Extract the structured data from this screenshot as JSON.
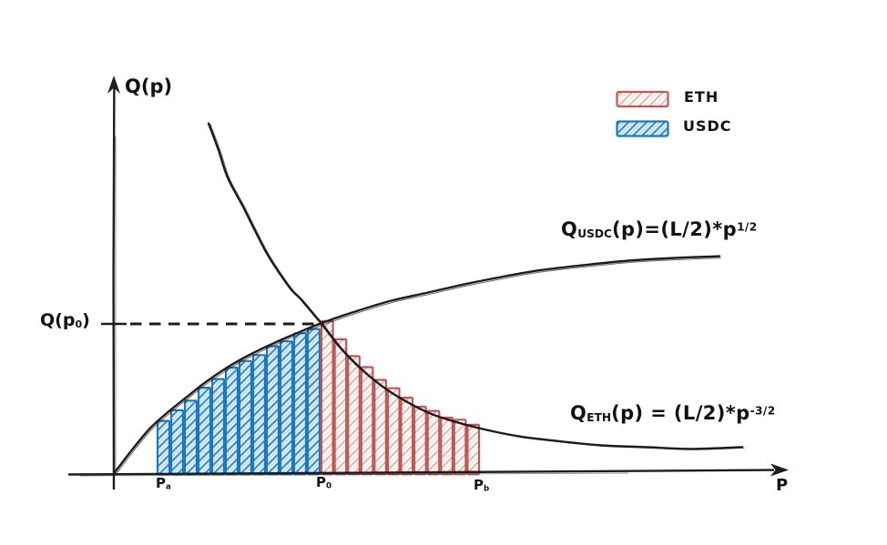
{
  "axes": {
    "y_label": "Q(p)",
    "x_label": "P"
  },
  "y_reference_label": {
    "pre": "Q(p",
    "sub": "0",
    "post": ")"
  },
  "legend": {
    "items": [
      {
        "label": "ETH",
        "swatch": "red-diagonal-hatch",
        "color": "#bf5955"
      },
      {
        "label": "USDC",
        "swatch": "blue-diagonal-hatch",
        "color": "#1f78bd"
      }
    ]
  },
  "formulas": {
    "usdc": {
      "pre": "Q",
      "sub": "USDC",
      "mid": "(p)=(L/2)*p",
      "sup": "1/2"
    },
    "eth": {
      "pre": "Q",
      "sub": "ETH",
      "mid": "(p) = (L/2)*p",
      "sup": "-3/2"
    }
  },
  "colors": {
    "ink": "#1c1c1c",
    "usdc_border": "#1f78bd",
    "usdc_hatch": "#3f93cf",
    "usdc_hatch_light": "#a9cfeb",
    "eth_border": "#bf5955",
    "eth_hatch": "#e7b3af",
    "eth_hatch_light": "#f4d9d7"
  },
  "chart_data": {
    "type": "line",
    "xlabel": "P",
    "ylabel": "Q(p)",
    "units_note": "p expressed in multiples of P0; Q expressed in multiples of Q(p0); no numeric axis scale shown",
    "axis_ranges": {
      "p": [
        0,
        3.3
      ],
      "q": [
        0,
        2.6
      ]
    },
    "grid": false,
    "legend_position": "top-right",
    "x_ticks": [
      {
        "base": "P",
        "sub": "a",
        "p": 0.207
      },
      {
        "base": "P",
        "sub": "0",
        "p": 1.0
      },
      {
        "base": "P",
        "sub": "b",
        "p": 1.771
      }
    ],
    "y_ticks": [
      {
        "label": "Q(p0)",
        "q": 1.0
      }
    ],
    "series": [
      {
        "key": "usdc",
        "name": "Q_USDC(p)=(L/2)*p^1/2",
        "points": [
          [
            0,
            0
          ],
          [
            0.088,
            0.158
          ],
          [
            0.176,
            0.303
          ],
          [
            0.264,
            0.412
          ],
          [
            0.352,
            0.509
          ],
          [
            0.441,
            0.606
          ],
          [
            0.551,
            0.709
          ],
          [
            0.661,
            0.794
          ],
          [
            0.771,
            0.867
          ],
          [
            0.881,
            0.933
          ],
          [
            1.0,
            1.0
          ],
          [
            1.167,
            1.079
          ],
          [
            1.344,
            1.152
          ],
          [
            1.52,
            1.206
          ],
          [
            1.696,
            1.261
          ],
          [
            1.872,
            1.309
          ],
          [
            2.048,
            1.352
          ],
          [
            2.269,
            1.388
          ],
          [
            2.489,
            1.418
          ],
          [
            2.709,
            1.436
          ],
          [
            2.93,
            1.448
          ]
        ]
      },
      {
        "key": "eth",
        "name": "Q_ETH(p) = (L/2)*p^-3/2",
        "points": [
          [
            0.458,
            2.333
          ],
          [
            0.507,
            2.152
          ],
          [
            0.551,
            1.97
          ],
          [
            0.626,
            1.776
          ],
          [
            0.683,
            1.618
          ],
          [
            0.74,
            1.467
          ],
          [
            0.802,
            1.333
          ],
          [
            0.859,
            1.224
          ],
          [
            0.903,
            1.164
          ],
          [
            0.978,
            1.042
          ],
          [
            1.004,
            1.0
          ],
          [
            1.101,
            0.83
          ],
          [
            1.211,
            0.679
          ],
          [
            1.322,
            0.558
          ],
          [
            1.432,
            0.467
          ],
          [
            1.542,
            0.394
          ],
          [
            1.652,
            0.345
          ],
          [
            1.784,
            0.297
          ],
          [
            1.96,
            0.248
          ],
          [
            2.137,
            0.218
          ],
          [
            2.357,
            0.188
          ],
          [
            2.577,
            0.176
          ],
          [
            2.797,
            0.164
          ],
          [
            3.04,
            0.176
          ]
        ]
      }
    ],
    "riemann_bars": [
      {
        "key": "usdc",
        "label": "USDC",
        "p_start": 0.207,
        "p_end": 1.0,
        "count": 12,
        "sample_edge": "left"
      },
      {
        "key": "eth",
        "label": "ETH",
        "p_start": 1.0,
        "p_end": 1.771,
        "count": 12,
        "sample_edge": "left"
      }
    ],
    "reference_line": {
      "q": 1.0,
      "to_p": 1.0,
      "style": "dashed"
    },
    "intersection": {
      "p": 1.0,
      "q": 1.0
    }
  }
}
